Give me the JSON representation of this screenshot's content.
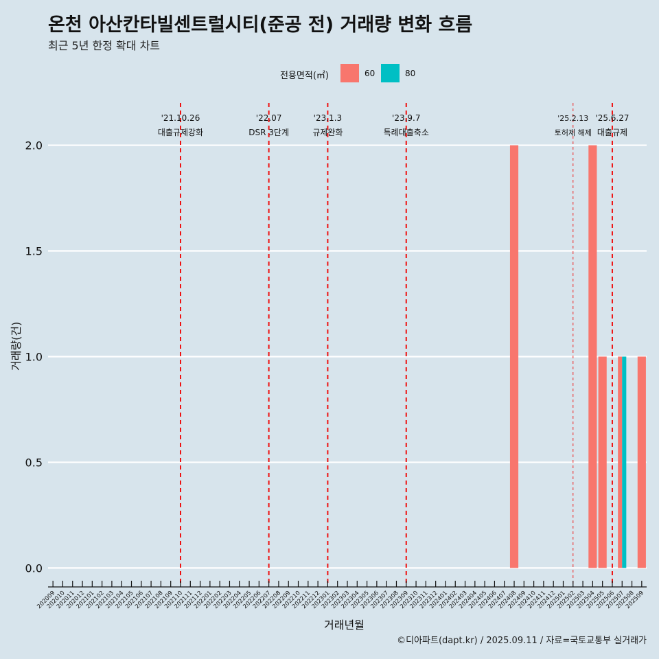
{
  "chart_data": {
    "type": "bar",
    "title": "온천 아산칸타빌센트럴시티(준공 전) 거래량 변화 흐름",
    "subtitle": "최근 5년 한정 확대 차트",
    "xlabel": "거래년월",
    "ylabel": "거래량(건)",
    "caption": "©디아파트(dapt.kr) / 2025.09.11 / 자료=국토교통부 실거래가",
    "ylim": [
      -0.08,
      2.2
    ],
    "yticks": [
      "0.0",
      "0.5",
      "1.0",
      "1.5",
      "2.0"
    ],
    "ytick_values": [
      0,
      0.5,
      1.0,
      1.5,
      2.0
    ],
    "grid": "horizontal",
    "legend": {
      "title": "전용면적(㎡)",
      "position": "top",
      "items": [
        {
          "label": "60",
          "color": "#f8766d"
        },
        {
          "label": "80",
          "color": "#00bfc4"
        }
      ]
    },
    "categories": [
      "202009",
      "202010",
      "202011",
      "202012",
      "202101",
      "202102",
      "202103",
      "202104",
      "202105",
      "202106",
      "202107",
      "202108",
      "202109",
      "202110",
      "202111",
      "202112",
      "202201",
      "202202",
      "202203",
      "202204",
      "202205",
      "202206",
      "202207",
      "202208",
      "202209",
      "202210",
      "202211",
      "202212",
      "202301",
      "202302",
      "202303",
      "202304",
      "202305",
      "202306",
      "202307",
      "202308",
      "202309",
      "202310",
      "202311",
      "202312",
      "202401",
      "202402",
      "202403",
      "202404",
      "202405",
      "202406",
      "202407",
      "202408",
      "202409",
      "202410",
      "202411",
      "202412",
      "202501",
      "202502",
      "202503",
      "202504",
      "202505",
      "202506",
      "202507",
      "202508",
      "202509"
    ],
    "series": [
      {
        "name": "60",
        "color": "#f8766d",
        "values": [
          0,
          0,
          0,
          0,
          0,
          0,
          0,
          0,
          0,
          0,
          0,
          0,
          0,
          0,
          0,
          0,
          0,
          0,
          0,
          0,
          0,
          0,
          0,
          0,
          0,
          0,
          0,
          0,
          0,
          0,
          0,
          0,
          0,
          0,
          0,
          0,
          0,
          0,
          0,
          0,
          0,
          0,
          0,
          0,
          0,
          0,
          0,
          2,
          0,
          0,
          0,
          0,
          0,
          0,
          0,
          2,
          1,
          0,
          1,
          0,
          1
        ]
      },
      {
        "name": "80",
        "color": "#00bfc4",
        "values": [
          0,
          0,
          0,
          0,
          0,
          0,
          0,
          0,
          0,
          0,
          0,
          0,
          0,
          0,
          0,
          0,
          0,
          0,
          0,
          0,
          0,
          0,
          0,
          0,
          0,
          0,
          0,
          0,
          0,
          0,
          0,
          0,
          0,
          0,
          0,
          0,
          0,
          0,
          0,
          0,
          0,
          0,
          0,
          0,
          0,
          0,
          0,
          0,
          0,
          0,
          0,
          0,
          0,
          0,
          0,
          0,
          0,
          0,
          1,
          0,
          0
        ]
      }
    ],
    "annotations": [
      {
        "month": "202110",
        "date": "'21.10.26",
        "label": "대출규제강화",
        "style": "dashed"
      },
      {
        "month": "202207",
        "date": "'22.07",
        "label": "DSR 3단계",
        "style": "dashed"
      },
      {
        "month": "202301",
        "date": "'23.1.3",
        "label": "규제완화",
        "style": "dashed"
      },
      {
        "month": "202309",
        "date": "'23.9.7",
        "label": "특례대출축소",
        "style": "dashed"
      },
      {
        "month": "202502",
        "date": "'25.2.13",
        "label": "토허제 해제",
        "style": "thin"
      },
      {
        "month": "202506",
        "date": "'25.6.27",
        "label": "대출규제",
        "style": "dashed"
      }
    ]
  }
}
